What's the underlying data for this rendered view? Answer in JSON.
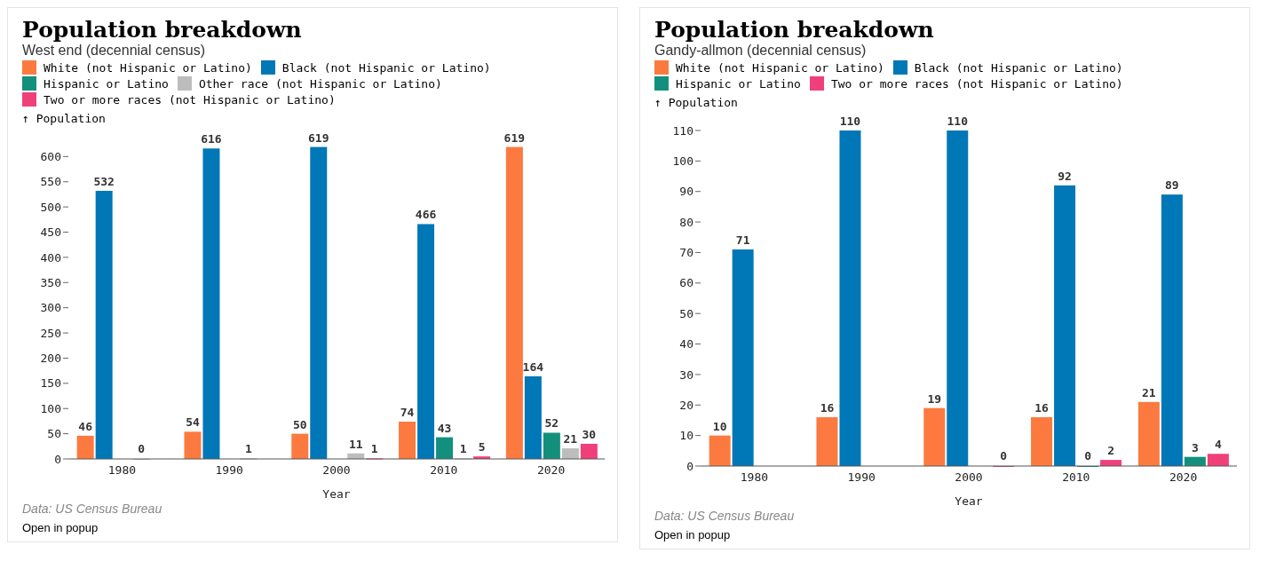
{
  "chart_data": [
    {
      "type": "bar",
      "title": "Population breakdown",
      "subtitle": "West end (decennial census)",
      "xlabel": "Year",
      "ylabel": "↑ Population",
      "categories": [
        "1980",
        "1990",
        "2000",
        "2010",
        "2020"
      ],
      "series": [
        {
          "name": "White (not Hispanic or Latino)",
          "color": "#fc7a3f",
          "values": [
            46,
            54,
            50,
            74,
            619
          ]
        },
        {
          "name": "Black (not Hispanic or Latino)",
          "color": "#0077b6",
          "values": [
            532,
            616,
            619,
            466,
            164
          ]
        },
        {
          "name": "Hispanic or Latino",
          "color": "#13907d",
          "values": [
            null,
            null,
            null,
            43,
            52
          ]
        },
        {
          "name": "Other race (not Hispanic or Latino)",
          "color": "#bdbdbd",
          "values": [
            0,
            1,
            11,
            1,
            21
          ]
        },
        {
          "name": "Two or more races (not Hispanic or Latino)",
          "color": "#f0407a",
          "values": [
            null,
            null,
            1,
            5,
            30
          ]
        }
      ],
      "ylim": [
        0,
        620
      ],
      "yticks": [
        0,
        50,
        100,
        150,
        200,
        250,
        300,
        350,
        400,
        450,
        500,
        550,
        600
      ],
      "grid": false,
      "legend": "top",
      "data_labels": true,
      "annotations": [
        "Data: US Census Bureau",
        "Open in popup"
      ]
    },
    {
      "type": "bar",
      "title": "Population breakdown",
      "subtitle": "Gandy-allmon (decennial census)",
      "xlabel": "Year",
      "ylabel": "↑ Population",
      "categories": [
        "1980",
        "1990",
        "2000",
        "2010",
        "2020"
      ],
      "series": [
        {
          "name": "White (not Hispanic or Latino)",
          "color": "#fc7a3f",
          "values": [
            10,
            16,
            19,
            16,
            21
          ]
        },
        {
          "name": "Black (not Hispanic or Latino)",
          "color": "#0077b6",
          "values": [
            71,
            110,
            110,
            92,
            89
          ]
        },
        {
          "name": "Hispanic or Latino",
          "color": "#13907d",
          "values": [
            null,
            null,
            null,
            0,
            3
          ]
        },
        {
          "name": "Two or more races (not Hispanic or Latino)",
          "color": "#f0407a",
          "values": [
            null,
            null,
            0,
            2,
            4
          ]
        }
      ],
      "ylim": [
        0,
        110
      ],
      "yticks": [
        0,
        10,
        20,
        30,
        40,
        50,
        60,
        70,
        80,
        90,
        100,
        110
      ],
      "grid": false,
      "legend": "top",
      "data_labels": true,
      "annotations": [
        "Data: US Census Bureau",
        "Open in popup"
      ]
    }
  ]
}
